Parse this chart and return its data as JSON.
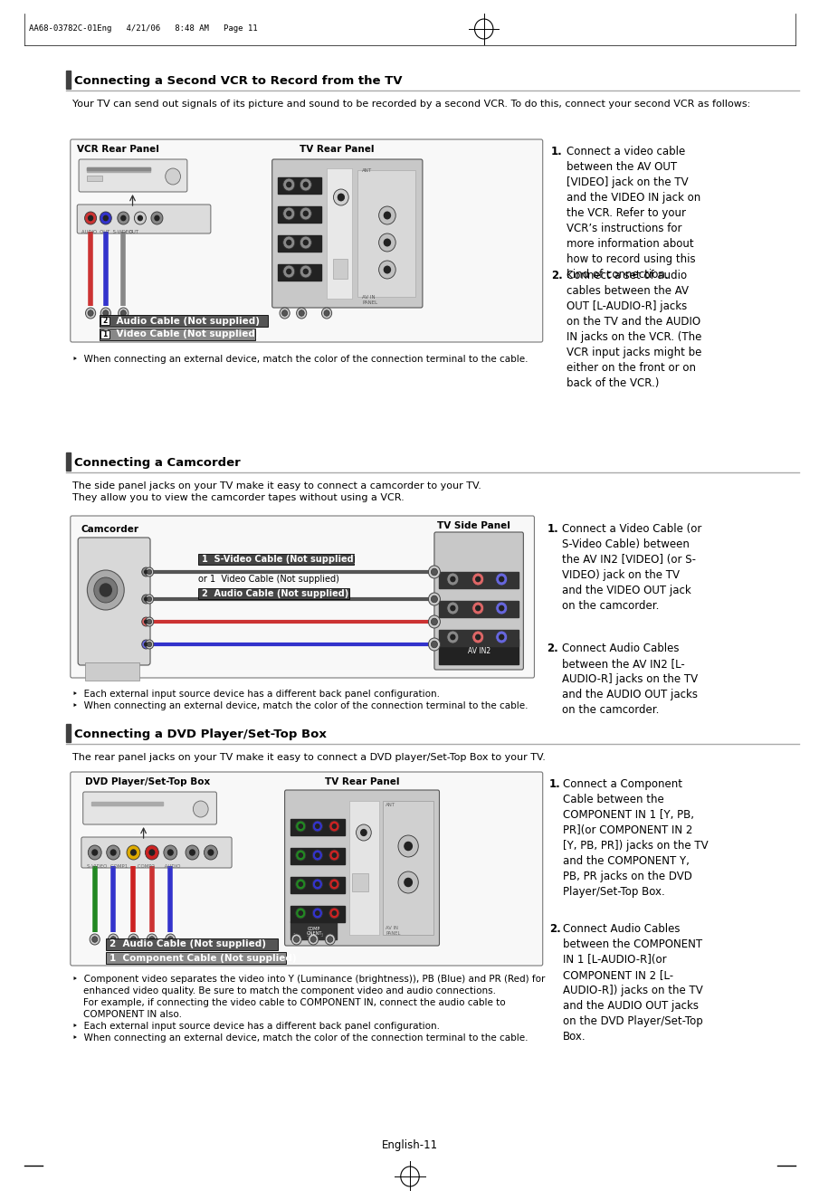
{
  "bg_color": "#ffffff",
  "page_width": 9.54,
  "page_height": 13.06,
  "header_text": "AA68-03782C-01Eng   4/21/06   8:48 AM   Page 11",
  "footer_text": "English-11",
  "section1": {
    "title": "Connecting a Second VCR to Record from the TV",
    "intro": "Your TV can send out signals of its picture and sound to be recorded by a second VCR. To do this, connect your second VCR as follows:",
    "vcr_label": "VCR Rear Panel",
    "tv_label": "TV Rear Panel",
    "cable1_label": "2  Audio Cable (Not supplied)",
    "cable2_label": "1  Video Cable (Not supplied)",
    "note": "‣  When connecting an external device, match the color of the connection terminal to the cable.",
    "p1_num": "1.",
    "p1_text": "Connect a video cable\nbetween the AV OUT\n[VIDEO] jack on the TV\nand the VIDEO IN jack on\nthe VCR. Refer to your\nVCR’s instructions for\nmore information about\nhow to record using this\nkind of connection.",
    "p2_num": "2.",
    "p2_text": "Connect a set of audio\ncables between the AV\nOUT [L-AUDIO-R] jacks\non the TV and the AUDIO\nIN jacks on the VCR. (The\nVCR input jacks might be\neither on the front or on\nback of the VCR.)"
  },
  "section2": {
    "title": "Connecting a Camcorder",
    "intro": "The side panel jacks on your TV make it easy to connect a camcorder to your TV.\nThey allow you to view the camcorder tapes without using a VCR.",
    "cam_label": "Camcorder",
    "tv_label": "TV Side Panel",
    "cable1_label": "1  S-Video Cable (Not supplied)",
    "cable2_label": "or 1  Video Cable (Not supplied)",
    "cable3_label": "2  Audio Cable (Not supplied)",
    "note1": "‣  Each external input source device has a different back panel configuration.",
    "note2": "‣  When connecting an external device, match the color of the connection terminal to the cable.",
    "p1_num": "1.",
    "p1_text": "Connect a Video Cable (or\nS-Video Cable) between\nthe AV IN2 [VIDEO] (or S-\nVIDEO) jack on the TV\nand the VIDEO OUT jack\non the camcorder.",
    "p2_num": "2.",
    "p2_text": "Connect Audio Cables\nbetween the AV IN2 [L-\nAUDIO-R] jacks on the TV\nand the AUDIO OUT jacks\non the camcorder."
  },
  "section3": {
    "title": "Connecting a DVD Player/Set-Top Box",
    "intro": "The rear panel jacks on your TV make it easy to connect a DVD player/Set-Top Box to your TV.",
    "dvd_label": "DVD Player/Set-Top Box",
    "tv_label": "TV Rear Panel",
    "cable1_label": "2  Audio Cable (Not supplied)",
    "cable2_label": "1  Component Cable (Not supplied)",
    "note1": "‣  Component video separates the video into Y (Luminance (brightness)), PB (Blue) and PR (Red) for\n   enhanced video quality. Be sure to match the component video and audio connections.\n   For example, if connecting the video cable to COMPONENT IN, connect the audio cable to\n   COMPONENT IN also.",
    "note2": "‣  Each external input source device has a different back panel configuration.",
    "note3": "‣  When connecting an external device, match the color of the connection terminal to the cable.",
    "p1_num": "1.",
    "p1_text": "Connect a Component\nCable between the\nCOMPONENT IN 1 [Y, PB,\nPR](or COMPONENT IN 2\n[Y, PB, PR]) jacks on the TV\nand the COMPONENT Y,\nPB, PR jacks on the DVD\nPlayer/Set-Top Box.",
    "p2_num": "2.",
    "p2_text": "Connect Audio Cables\nbetween the COMPONENT\nIN 1 [L-AUDIO-R](or\nCOMPONENT IN 2 [L-\nAUDIO-R]) jacks on the TV\nand the AUDIO OUT jacks\non the DVD Player/Set-Top\nBox."
  }
}
